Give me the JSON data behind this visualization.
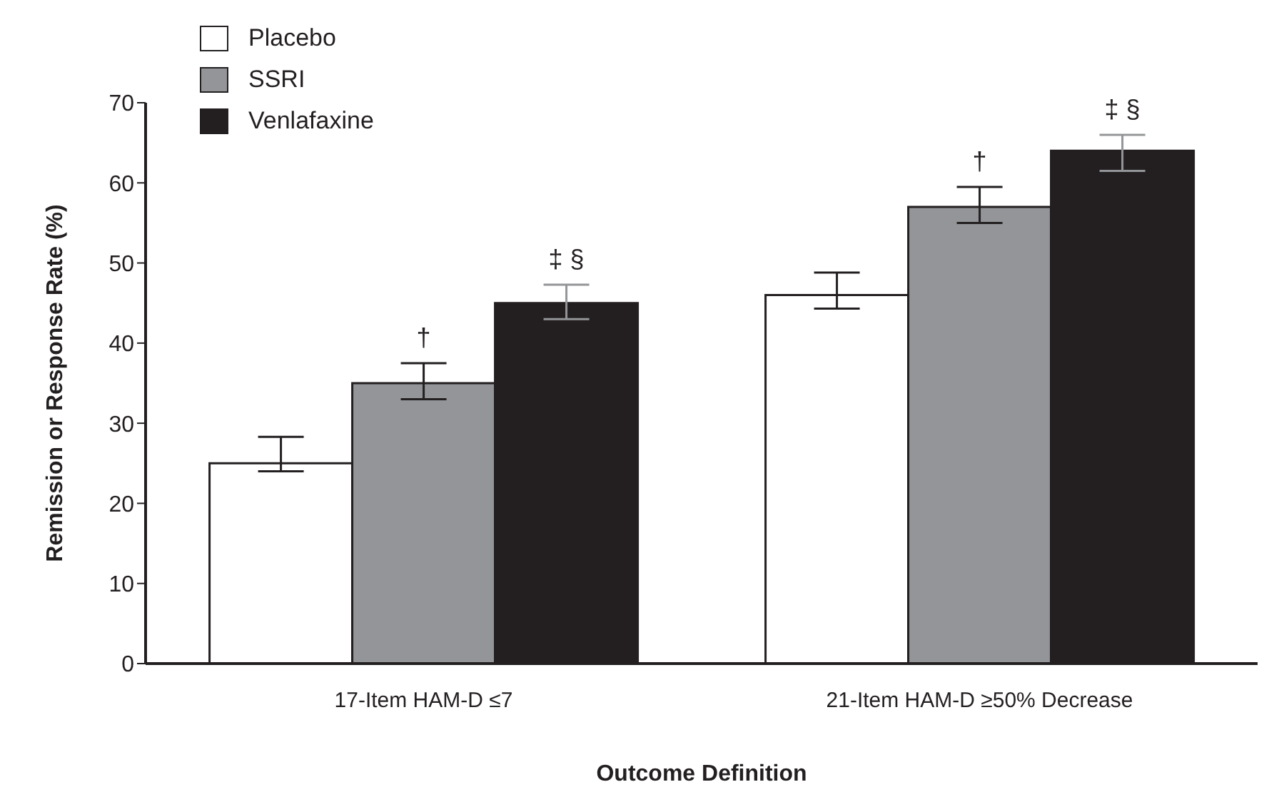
{
  "chart_data": {
    "type": "bar",
    "xlabel": "Outcome Definition",
    "ylabel": "Remission or Response Rate (%)",
    "categories": [
      "17-Item HAM-D ≤7",
      "21-Item HAM-D ≥50% Decrease"
    ],
    "series": [
      {
        "name": "Placebo",
        "color": "#ffffff",
        "values": [
          25,
          46
        ],
        "errors": [
          [
            24,
            28.3
          ],
          [
            44.3,
            48.8
          ]
        ]
      },
      {
        "name": "SSRI",
        "color": "#939598",
        "values": [
          35,
          57
        ],
        "errors": [
          [
            33,
            37.5
          ],
          [
            55,
            59.5
          ]
        ]
      },
      {
        "name": "Venlafaxine",
        "color": "#231f20",
        "values": [
          45,
          64
        ],
        "errors": [
          [
            43,
            47.3
          ],
          [
            61.5,
            66
          ]
        ]
      }
    ],
    "ylim": [
      0,
      70
    ],
    "yticks": [
      0,
      10,
      20,
      30,
      40,
      50,
      60,
      70
    ],
    "grid": false,
    "legend": "top left",
    "annotations": [
      "†",
      "‡ §",
      "†",
      "‡ §"
    ]
  }
}
